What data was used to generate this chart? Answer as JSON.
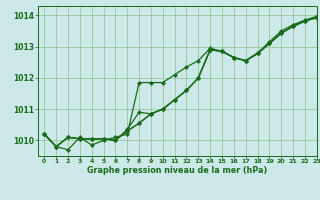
{
  "title": "Graphe pression niveau de la mer (hPa)",
  "background_color": "#cce8e8",
  "line_color": "#1a6b1a",
  "grid_color": "#8cbf8c",
  "xlim": [
    -0.5,
    23
  ],
  "ylim": [
    1009.5,
    1014.3
  ],
  "yticks": [
    1010,
    1011,
    1012,
    1013,
    1014
  ],
  "xticks": [
    0,
    1,
    2,
    3,
    4,
    5,
    6,
    7,
    8,
    9,
    10,
    11,
    12,
    13,
    14,
    15,
    16,
    17,
    18,
    19,
    20,
    21,
    22,
    23
  ],
  "series": [
    [
      1010.2,
      1009.8,
      1009.7,
      1010.1,
      1009.85,
      1010.0,
      1010.1,
      1010.2,
      1011.85,
      1011.85,
      1011.85,
      1012.1,
      1012.35,
      1012.55,
      1012.95,
      1012.85,
      1012.65,
      1012.55,
      1012.8,
      1013.15,
      1013.5,
      1013.7,
      1013.85,
      1013.97
    ],
    [
      1010.2,
      1009.8,
      1010.1,
      1010.05,
      1010.05,
      1010.05,
      1010.0,
      1010.3,
      1010.55,
      1010.85,
      1011.0,
      1011.3,
      1011.6,
      1012.0,
      1012.9,
      1012.85,
      1012.65,
      1012.55,
      1012.78,
      1013.1,
      1013.43,
      1013.65,
      1013.82,
      1013.93
    ],
    [
      1010.2,
      1009.8,
      1010.1,
      1010.05,
      1010.05,
      1010.05,
      1010.0,
      1010.3,
      1010.55,
      1010.85,
      1011.0,
      1011.3,
      1011.6,
      1012.0,
      1012.9,
      1012.85,
      1012.65,
      1012.55,
      1012.78,
      1013.1,
      1013.43,
      1013.65,
      1013.82,
      1013.93
    ],
    [
      1010.2,
      1009.8,
      1010.1,
      1010.05,
      1010.05,
      1010.05,
      1010.0,
      1010.35,
      1010.9,
      1010.85,
      1011.0,
      1011.3,
      1011.6,
      1012.0,
      1012.9,
      1012.85,
      1012.65,
      1012.55,
      1012.78,
      1013.1,
      1013.43,
      1013.65,
      1013.82,
      1013.93
    ]
  ]
}
